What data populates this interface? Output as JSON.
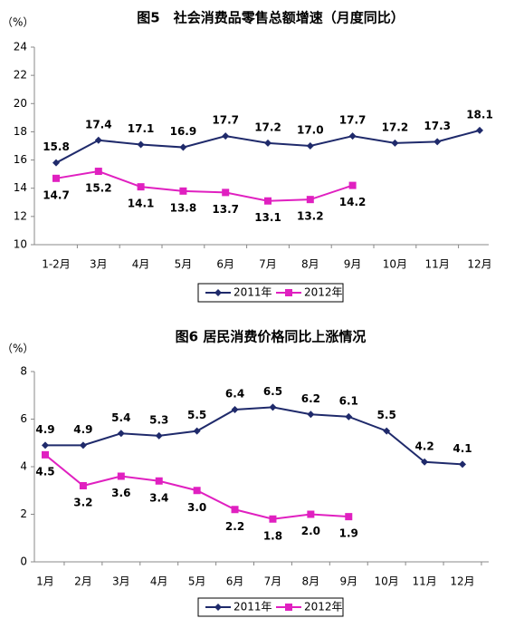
{
  "chart_data": [
    {
      "type": "line",
      "title": "图5　社会消费品零售总额增速（月度同比）",
      "y_label": "（%）",
      "categories": [
        "1-2月",
        "3月",
        "4月",
        "5月",
        "6月",
        "7月",
        "8月",
        "9月",
        "10月",
        "11月",
        "12月"
      ],
      "series": [
        {
          "name": "2011年",
          "color": "#1f2a6b",
          "marker": "diamond",
          "values": [
            15.8,
            17.4,
            17.1,
            16.9,
            17.7,
            17.2,
            17.0,
            17.7,
            17.2,
            17.3,
            18.1
          ],
          "value_labels": [
            "15.8",
            "17.4",
            "17.1",
            "16.9",
            "17.7",
            "17.2",
            "17.0",
            "17.7",
            "17.2",
            "17.3",
            "18.1"
          ]
        },
        {
          "name": "2012年",
          "color": "#e020c0",
          "marker": "square",
          "values": [
            14.7,
            15.2,
            14.1,
            13.8,
            13.7,
            13.1,
            13.2,
            14.2,
            null,
            null,
            null
          ],
          "value_labels": [
            "14.7",
            "15.2",
            "14.1",
            "13.8",
            "13.7",
            "13.1",
            "13.2",
            "14.2",
            null,
            null,
            null
          ]
        }
      ],
      "ylim": [
        10,
        24
      ],
      "yticks": [
        10,
        12,
        14,
        16,
        18,
        20,
        22,
        24
      ],
      "grid": false,
      "legend": "bottom"
    },
    {
      "type": "line",
      "title": "图6  居民消费价格同比上涨情况",
      "y_label": "（%）",
      "categories": [
        "1月",
        "2月",
        "3月",
        "4月",
        "5月",
        "6月",
        "7月",
        "8月",
        "9月",
        "10月",
        "11月",
        "12月"
      ],
      "series": [
        {
          "name": "2011年",
          "color": "#1f2a6b",
          "marker": "diamond",
          "values": [
            4.9,
            4.9,
            5.4,
            5.3,
            5.5,
            6.4,
            6.5,
            6.2,
            6.1,
            5.5,
            4.2,
            4.1
          ],
          "value_labels": [
            "4.9",
            "4.9",
            "5.4",
            "5.3",
            "5.5",
            "6.4",
            "6.5",
            "6.2",
            "6.1",
            "5.5",
            "4.2",
            "4.1"
          ]
        },
        {
          "name": "2012年",
          "color": "#e020c0",
          "marker": "square",
          "values": [
            4.5,
            3.2,
            3.6,
            3.4,
            3.0,
            2.2,
            1.8,
            2.0,
            1.9,
            null,
            null,
            null
          ],
          "value_labels": [
            "4.5",
            "3.2",
            "3.6",
            "3.4",
            "3.0",
            "2.2",
            "1.8",
            "2.0",
            "1.9",
            null,
            null,
            null
          ]
        }
      ],
      "ylim": [
        0,
        8
      ],
      "yticks": [
        0,
        2,
        4,
        6,
        8
      ],
      "grid": false,
      "legend": "bottom"
    }
  ]
}
